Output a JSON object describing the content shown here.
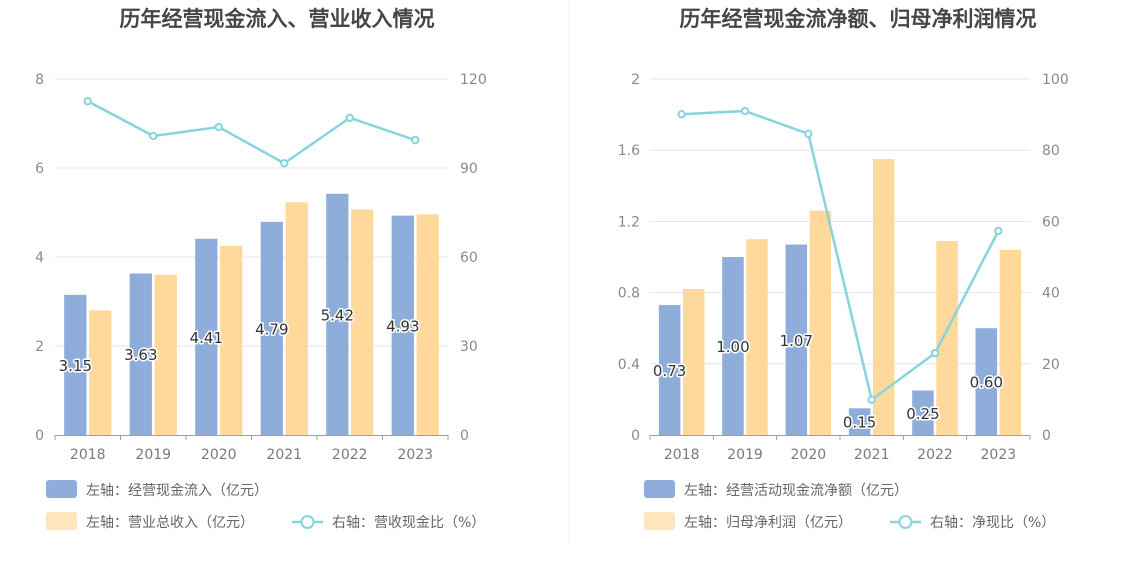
{
  "colors": {
    "bar_left": "#8eadda",
    "bar_right": "#ffd99b",
    "line": "#87d4dc",
    "grid": "#e3e6ef",
    "axis": "#9aa0aa",
    "divider": "#eeeeee"
  },
  "chart_data": [
    {
      "type": "bar",
      "title": "历年经营现金流入、营业收入情况",
      "categories": [
        "2018",
        "2019",
        "2020",
        "2021",
        "2022",
        "2023"
      ],
      "left_axis": {
        "ticks": [
          "0",
          "2",
          "4",
          "6",
          "8"
        ],
        "ylim": [
          0,
          8
        ]
      },
      "right_axis": {
        "ticks": [
          "0",
          "30",
          "60",
          "90",
          "120"
        ],
        "ylim": [
          0,
          120
        ]
      },
      "series": [
        {
          "name": "左轴：经营现金流入（亿元）",
          "kind": "bar",
          "axis": "left",
          "values": [
            3.15,
            3.63,
            4.41,
            4.79,
            5.42,
            4.93
          ],
          "labels": [
            "3.15",
            "3.63",
            "4.41",
            "4.79",
            "5.42",
            "4.93"
          ]
        },
        {
          "name": "左轴：营业总收入（亿元）",
          "kind": "bar",
          "axis": "left",
          "values": [
            2.8,
            3.6,
            4.25,
            5.23,
            5.07,
            4.96
          ]
        },
        {
          "name": "右轴：营收现金比（%）",
          "kind": "line",
          "axis": "right",
          "values": [
            112.5,
            100.8,
            103.8,
            91.6,
            106.9,
            99.4
          ]
        }
      ],
      "legend": [
        "左轴：经营现金流入（亿元）",
        "左轴：营业总收入（亿元）",
        "右轴：营收现金比（%）"
      ]
    },
    {
      "type": "bar",
      "title": "历年经营现金流净额、归母净利润情况",
      "categories": [
        "2018",
        "2019",
        "2020",
        "2021",
        "2022",
        "2023"
      ],
      "left_axis": {
        "ticks": [
          "0",
          "0.4",
          "0.8",
          "1.2",
          "1.6",
          "2"
        ],
        "ylim": [
          0,
          2
        ]
      },
      "right_axis": {
        "ticks": [
          "0",
          "20",
          "40",
          "60",
          "80",
          "100"
        ],
        "ylim": [
          0,
          100
        ]
      },
      "series": [
        {
          "name": "左轴：经营活动现金流净额（亿元）",
          "kind": "bar",
          "axis": "left",
          "values": [
            0.73,
            1.0,
            1.07,
            0.15,
            0.25,
            0.6
          ],
          "labels": [
            "0.73",
            "1.00",
            "1.07",
            "0.15",
            "0.25",
            "0.60"
          ]
        },
        {
          "name": "左轴：归母净利润（亿元）",
          "kind": "bar",
          "axis": "left",
          "values": [
            0.82,
            1.1,
            1.26,
            1.55,
            1.09,
            1.04
          ]
        },
        {
          "name": "右轴：净现比（%）",
          "kind": "line",
          "axis": "right",
          "values": [
            90.1,
            91.0,
            84.6,
            9.9,
            23.0,
            57.3
          ]
        }
      ],
      "legend": [
        "左轴：经营活动现金流净额（亿元）",
        "左轴：归母净利润（亿元）",
        "右轴：净现比（%）"
      ]
    }
  ]
}
